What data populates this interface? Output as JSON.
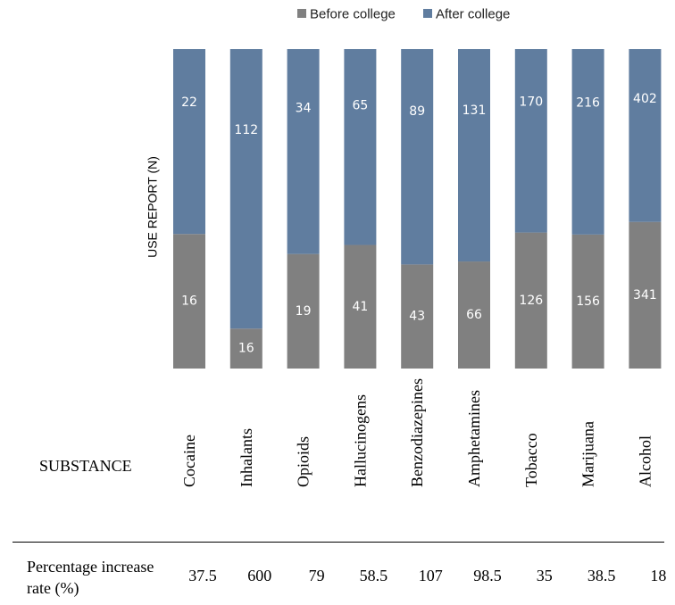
{
  "chart_data": {
    "type": "bar",
    "stacked": true,
    "ylabel": "USE REPORT (N)",
    "legend_position": "top",
    "categories": [
      "Cocaine",
      "Inhalants",
      "Opioids",
      "Hallucinogens",
      "Benzodiazepines",
      "Amphetamines",
      "Tobacco",
      "Marijuana",
      "Alcohol"
    ],
    "series": [
      {
        "name": "Before college",
        "color": "#808080",
        "values": [
          16,
          16,
          19,
          41,
          43,
          66,
          126,
          156,
          341
        ]
      },
      {
        "name": "After college",
        "color": "#607d9f",
        "values": [
          22,
          112,
          34,
          65,
          89,
          131,
          170,
          216,
          402
        ]
      }
    ],
    "normalized": true,
    "grid": false
  },
  "table": {
    "substance_label": "SUBSTANCE",
    "rate_label_line1": "Percentage increase",
    "rate_label_line2": "rate (%)",
    "rates": [
      "37.5",
      "600",
      "79",
      "58.5",
      "107",
      "98.5",
      "35",
      "38.5",
      "18"
    ]
  }
}
